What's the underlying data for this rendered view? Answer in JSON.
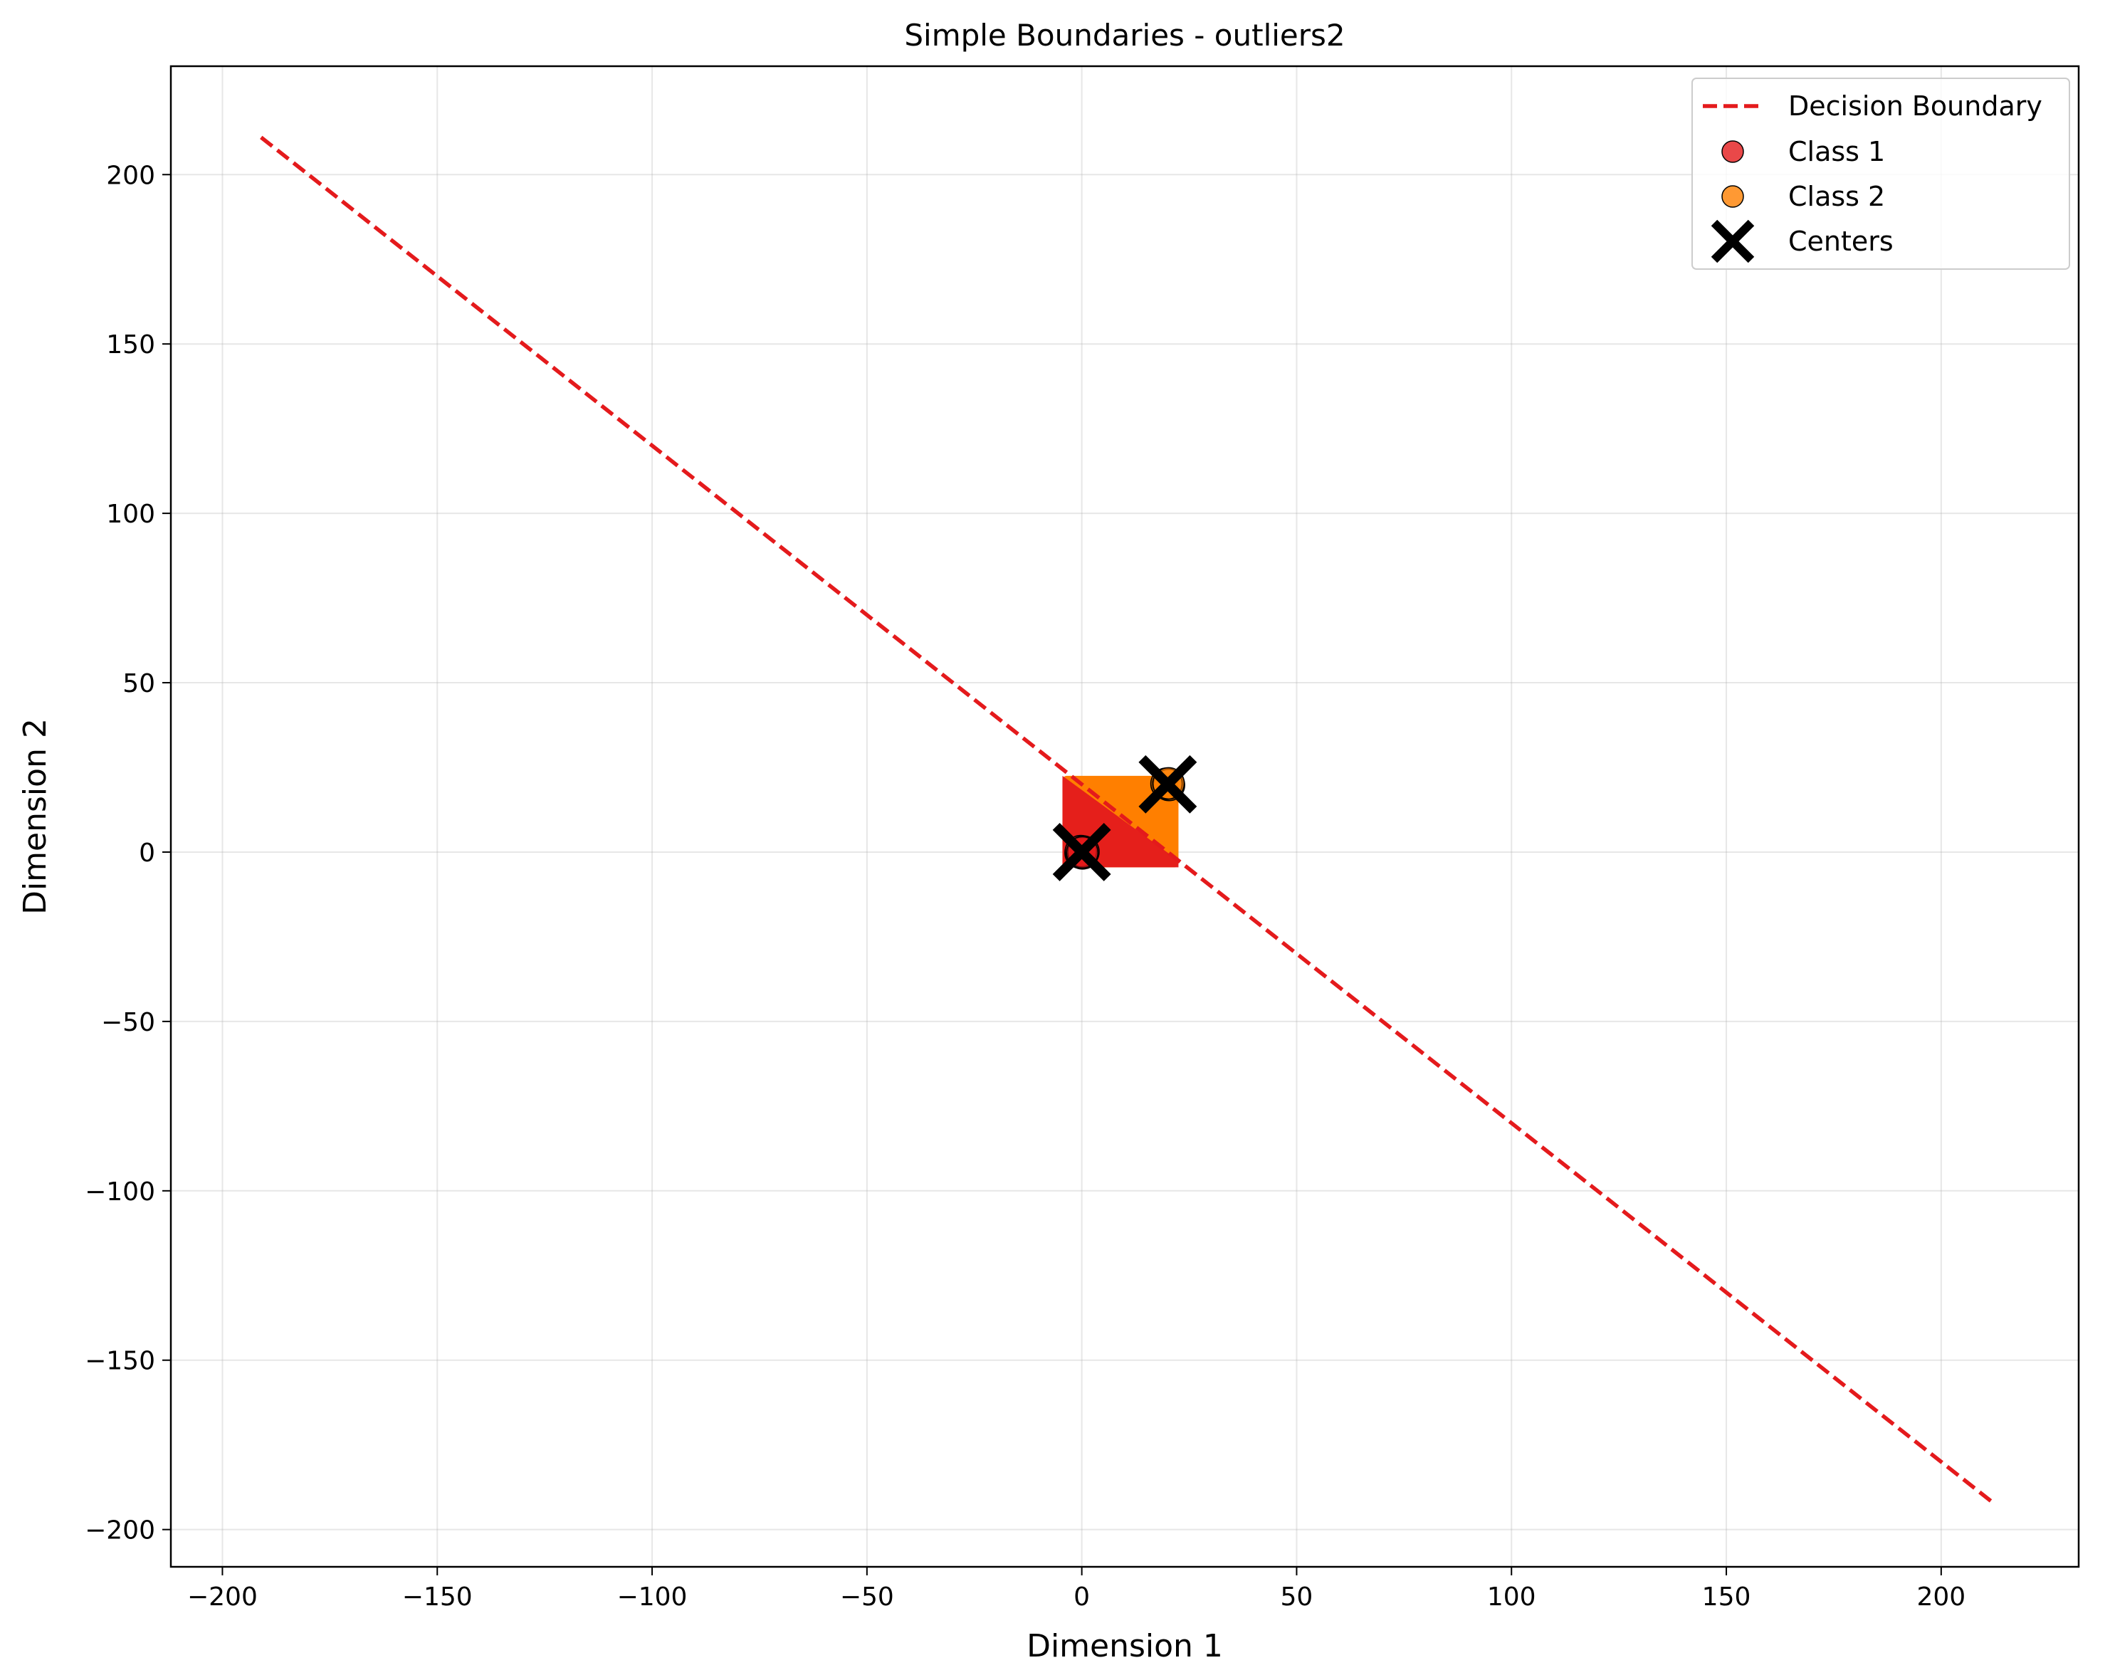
{
  "chart_data": {
    "type": "scatter",
    "title": "Simple Boundaries - outliers2",
    "xlabel": "Dimension 1",
    "ylabel": "Dimension 2",
    "xlim": [
      -212,
      232
    ],
    "ylim": [
      -211,
      232
    ],
    "xticks": [
      -200,
      -150,
      -100,
      -50,
      0,
      50,
      100,
      150,
      200
    ],
    "yticks": [
      -200,
      -150,
      -100,
      -50,
      0,
      50,
      100,
      150,
      200
    ],
    "xtick_labels": [
      "−200",
      "−150",
      "−100",
      "−50",
      "0",
      "50",
      "100",
      "150",
      "200"
    ],
    "ytick_labels": [
      "−200",
      "−150",
      "−100",
      "−50",
      "0",
      "50",
      "100",
      "150",
      "200"
    ],
    "grid": true,
    "legend_position": "top-right",
    "decision_regions": {
      "x_range": [
        -4.5,
        22.5
      ],
      "y_range": [
        -4.5,
        22.5
      ],
      "class1_color": "#e41a1c",
      "class2_color": "#ff7f00"
    },
    "series": [
      {
        "name": "Decision Boundary",
        "kind": "line",
        "style": "dashed",
        "color": "#e41a1c",
        "x": [
          -191,
          212
        ],
        "y": [
          211,
          -192
        ]
      },
      {
        "name": "Class 1",
        "kind": "scatter",
        "color": "#e41a1c",
        "x": [
          0,
          0.3,
          -0.3,
          0.2,
          -0.2,
          0.4,
          0.1
        ],
        "y": [
          0,
          0.2,
          -0.2,
          -0.4,
          0.3,
          0.1,
          -0.1
        ]
      },
      {
        "name": "Class 2",
        "kind": "scatter",
        "color": "#ff7f00",
        "x": [
          20,
          20.3,
          19.7,
          20.2
        ],
        "y": [
          20,
          19.8,
          20.2,
          20.3
        ]
      },
      {
        "name": "Centers",
        "kind": "marker-x",
        "color": "#000000",
        "x": [
          0,
          20
        ],
        "y": [
          0,
          20
        ]
      }
    ]
  }
}
